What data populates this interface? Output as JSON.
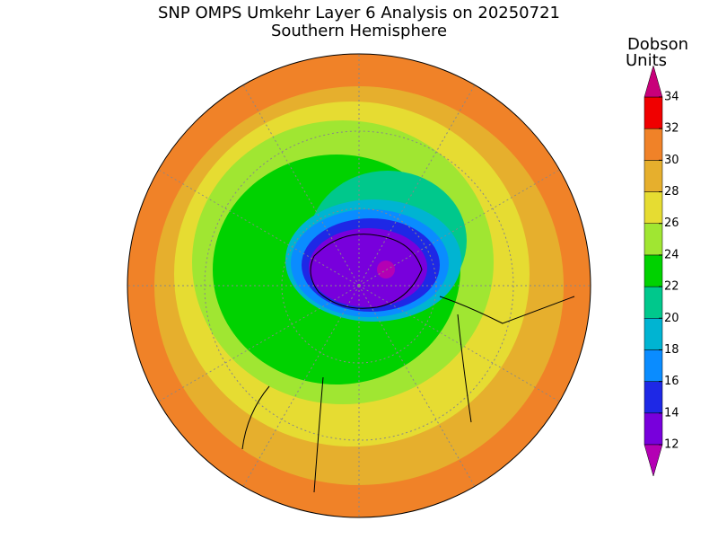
{
  "title": "SNP OMPS Umkehr Layer 6 Analysis on 20250721",
  "subtitle": "Southern Hemisphere",
  "colorbar": {
    "label_lines": [
      "Dobson",
      "Units"
    ],
    "range": [
      12,
      34
    ],
    "ticks": [
      12,
      14,
      16,
      18,
      20,
      22,
      24,
      26,
      28,
      30,
      32,
      34
    ],
    "under_color": "#b400b4",
    "over_color": "#c8007a",
    "colors": [
      "#7800dc",
      "#1e28e6",
      "#0a8cff",
      "#00b4d2",
      "#00c88c",
      "#00d200",
      "#a0e632",
      "#e6dc32",
      "#e6af2d",
      "#f08228",
      "#f00000"
    ]
  }
}
